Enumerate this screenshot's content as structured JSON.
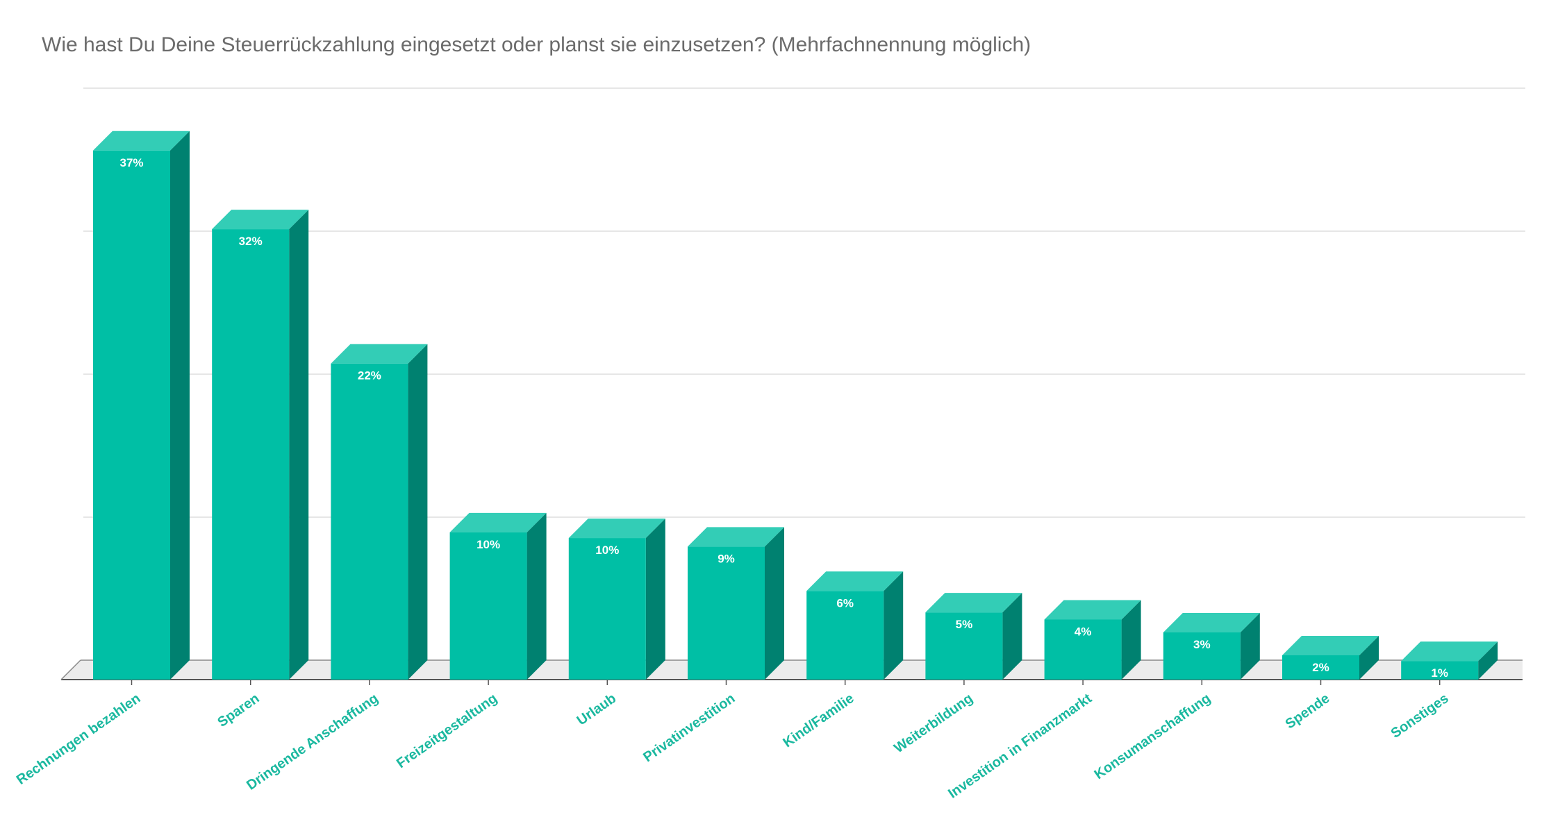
{
  "chart_data": {
    "type": "bar",
    "title": "Wie hast Du Deine Steuerrückzahlung eingesetzt oder planst sie einzusetzen? (Mehrfachnennung möglich)",
    "xlabel": "",
    "ylabel": "",
    "ylim": [
      0,
      40
    ],
    "grid": true,
    "style": "3d",
    "categories": [
      "Rechnungen bezahlen",
      "Sparen",
      "Dringende Anschaffung",
      "Freizeitgestaltung",
      "Urlaub",
      "Privatinvestition",
      "Kind/Familie",
      "Weiterbildung",
      "Investition in Finanzmarkt",
      "Konsumanschaffung",
      "Spende",
      "Sonstiges"
    ],
    "values": [
      37,
      31.5,
      22.1,
      10.3,
      9.9,
      9.3,
      6.2,
      4.7,
      4.2,
      3.3,
      1.7,
      1.3
    ],
    "data_labels": [
      "37%",
      "32%",
      "22%",
      "10%",
      "10%",
      "9%",
      "6%",
      "5%",
      "4%",
      "3%",
      "2%",
      "1%"
    ],
    "colors": {
      "bar_front": "#00bfa5",
      "bar_top": "#33cdb6",
      "bar_side": "#008170",
      "tick_label": "#1ab89f",
      "grid": "#dddddd",
      "floor": "#ececec",
      "axis": "#555555"
    }
  }
}
